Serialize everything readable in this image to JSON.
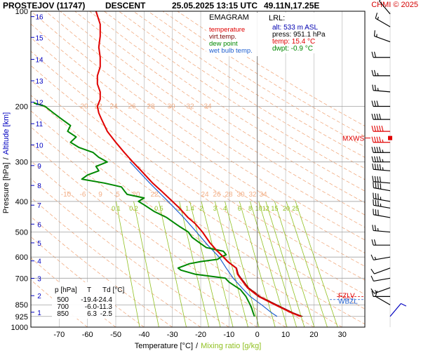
{
  "header": {
    "station": "PROSTEJOV (11747)",
    "mode": "DESCENT",
    "datetime": "25.05.2025 13:15 UTC",
    "coords": "49.11N,17.25E",
    "credit": "CHMI © 2025"
  },
  "colors": {
    "temperature": "#e00000",
    "virt_temp": "#7a0000",
    "dew_point": "#008800",
    "wet_bulb": "#2060d0",
    "mixing_ratio": "#90c020",
    "isotherm": "#b0b0b0",
    "dry_adiabat": "#f0a070",
    "altitude": "#0000c0"
  },
  "legend": {
    "title": "EMAGRAM",
    "items": [
      {
        "label": "temperature",
        "color": "#e00000"
      },
      {
        "label": "virt.temp.",
        "color": "#7a0000"
      },
      {
        "label": "dew point",
        "color": "#008800"
      },
      {
        "label": "wet bulb temp.",
        "color": "#2060d0"
      }
    ]
  },
  "lrl": {
    "title": "LRL:",
    "alt": "alt: 533 m ASL",
    "press": "press: 951.1 hPa",
    "temp": "temp: 15.4 °C",
    "dwpt": "dwpt: -0.9 °C"
  },
  "table": {
    "headers": [
      "p [hPa]",
      "T",
      "Td [°C]"
    ],
    "rows": [
      [
        "500",
        "-19.4",
        "-24.4"
      ],
      [
        "700",
        "-6.0",
        "-11.3"
      ],
      [
        "850",
        "6.3",
        "-2.5"
      ]
    ]
  },
  "markers": {
    "mxws": "MXWS",
    "fzlv": "FZLV",
    "wbzl": "WBZL"
  },
  "chart_data": {
    "type": "line",
    "xlabel": "Temperature [°C]",
    "xlabel_sep": "/",
    "xlabel2": "Mixing ratio [g/kg]",
    "ylabel": "Pressure [hPa]",
    "ylabel_sep": "/",
    "ylabel2": "Altitude [km]",
    "xlim": [
      -80,
      38
    ],
    "ylim": [
      1000,
      100
    ],
    "y_scale": "log",
    "x_ticks": [
      -70,
      -60,
      -50,
      -40,
      -30,
      -20,
      -10,
      0,
      10,
      20,
      30
    ],
    "y_ticks": [
      100,
      200,
      300,
      400,
      500,
      600,
      700,
      850,
      925,
      1000
    ],
    "altitude_ticks": [
      {
        "km": "1",
        "p": 897
      },
      {
        "km": "2",
        "p": 795
      },
      {
        "km": "3",
        "p": 701
      },
      {
        "km": "4",
        "p": 617
      },
      {
        "km": "5",
        "p": 541
      },
      {
        "km": "6",
        "p": 472
      },
      {
        "km": "7",
        "p": 411
      },
      {
        "km": "8",
        "p": 356
      },
      {
        "km": "9",
        "p": 308
      },
      {
        "km": "10",
        "p": 265
      },
      {
        "km": "11",
        "p": 227
      },
      {
        "km": "12",
        "p": 194
      },
      {
        "km": "13",
        "p": 166
      },
      {
        "km": "14",
        "p": 142
      },
      {
        "km": "15",
        "p": 121
      },
      {
        "km": "16",
        "p": 104
      }
    ],
    "mixing_ratio_lines": [
      0.1,
      0.2,
      0.5,
      1,
      1.4,
      2,
      3,
      4,
      6,
      8,
      10,
      12,
      15,
      20,
      25
    ],
    "mixing_ratio_label_p": 400,
    "dry_adiabat_labels": [
      {
        "p": 200,
        "values": [
          "20",
          "22",
          "24",
          "26",
          "28",
          "30",
          "32",
          "34"
        ]
      },
      {
        "p": 380,
        "values": [
          "-10",
          "-6",
          "9",
          "5",
          "20",
          "22",
          "24",
          "26",
          "28",
          "30",
          "32",
          "34"
        ]
      }
    ],
    "series": [
      {
        "name": "temperature",
        "p": [
          925,
          900,
          850,
          800,
          750,
          700,
          680,
          650,
          620,
          600,
          570,
          540,
          500,
          470,
          450,
          420,
          400,
          370,
          350,
          320,
          300,
          280,
          260,
          240,
          220,
          210,
          200,
          190,
          180,
          170,
          160,
          150,
          140,
          130,
          120,
          110,
          100
        ],
        "values": [
          15.4,
          12.0,
          6.3,
          0.5,
          -3.5,
          -6.0,
          -7.0,
          -7.5,
          -10.5,
          -12.0,
          -14.5,
          -16.8,
          -19.4,
          -22.0,
          -24.5,
          -27.5,
          -30.0,
          -34.0,
          -37.0,
          -41.0,
          -44.0,
          -47.0,
          -50.0,
          -53.0,
          -55.0,
          -56.0,
          -56.5,
          -55.5,
          -55.5,
          -56.5,
          -56.5,
          -55.5,
          -55.5,
          -56.0,
          -55.5,
          -55.5,
          -57.0
        ]
      },
      {
        "name": "virt.temp.",
        "p": [
          925,
          900,
          850,
          800,
          750,
          700,
          680,
          650,
          620,
          600,
          570,
          540,
          500,
          470,
          450,
          420,
          400,
          370,
          350,
          320,
          300
        ],
        "values": [
          16.0,
          12.6,
          6.9,
          1.0,
          -3.1,
          -5.7,
          -6.7,
          -7.3,
          -10.3,
          -11.8,
          -14.4,
          -16.7,
          -19.3,
          -21.9,
          -24.4,
          -27.4,
          -29.9,
          -33.9,
          -36.9,
          -40.9,
          -43.9
        ]
      },
      {
        "name": "dew point",
        "p": [
          925,
          900,
          870,
          850,
          800,
          760,
          740,
          720,
          700,
          680,
          660,
          650,
          640,
          630,
          620,
          610,
          600,
          590,
          575,
          560,
          540,
          520,
          500,
          480,
          470,
          450,
          430,
          410,
          400,
          390,
          380,
          370,
          360,
          350,
          340,
          330,
          320,
          310,
          300,
          290,
          280,
          270,
          260,
          250,
          240,
          230,
          220,
          210,
          200,
          195
        ],
        "values": [
          -1.0,
          -1.5,
          -2.0,
          -2.5,
          -4.0,
          -6.0,
          -8.0,
          -10.0,
          -11.3,
          -22.0,
          -27.0,
          -28.0,
          -26.0,
          -24.0,
          -20.0,
          -14.0,
          -13.0,
          -11.0,
          -12.0,
          -18.0,
          -20.5,
          -23.0,
          -24.4,
          -27.5,
          -29.0,
          -32.0,
          -36.5,
          -40.0,
          -42.0,
          -40.0,
          -46.0,
          -47.0,
          -48.0,
          -54.0,
          -62.0,
          -60.0,
          -56.0,
          -57.0,
          -53.0,
          -56.0,
          -58.0,
          -63.0,
          -66.0,
          -64.0,
          -67.0,
          -66.0,
          -69.0,
          -72.0,
          -75.0,
          -79.0
        ]
      },
      {
        "name": "wet bulb temp.",
        "p": [
          925,
          900,
          850,
          800,
          750,
          700,
          650,
          600,
          550,
          500,
          450,
          400,
          350,
          300
        ],
        "values": [
          7.0,
          5.0,
          1.5,
          -2.5,
          -5.5,
          -8.5,
          -11.0,
          -13.5,
          -17.5,
          -21.5,
          -26.0,
          -31.5,
          -38.0,
          -45.0
        ]
      }
    ],
    "wind_barbs": [
      {
        "p": 925,
        "dir": 40,
        "kt": 10
      },
      {
        "p": 850,
        "dir": 300,
        "kt": 10
      },
      {
        "p": 800,
        "dir": 270,
        "kt": 10
      },
      {
        "p": 750,
        "dir": 250,
        "kt": 15
      },
      {
        "p": 700,
        "dir": 260,
        "kt": 10
      },
      {
        "p": 650,
        "dir": 250,
        "kt": 10
      },
      {
        "p": 600,
        "dir": 260,
        "kt": 15
      },
      {
        "p": 550,
        "dir": 270,
        "kt": 20
      },
      {
        "p": 500,
        "dir": 275,
        "kt": 25
      },
      {
        "p": 450,
        "dir": 280,
        "kt": 30
      },
      {
        "p": 420,
        "dir": 280,
        "kt": 35
      },
      {
        "p": 400,
        "dir": 280,
        "kt": 35
      },
      {
        "p": 370,
        "dir": 280,
        "kt": 40
      },
      {
        "p": 350,
        "dir": 275,
        "kt": 40
      },
      {
        "p": 320,
        "dir": 275,
        "kt": 45
      },
      {
        "p": 300,
        "dir": 270,
        "kt": 45
      },
      {
        "p": 280,
        "dir": 270,
        "kt": 45
      },
      {
        "p": 260,
        "dir": 270,
        "kt": 45
      },
      {
        "p": 240,
        "dir": 270,
        "kt": 50
      },
      {
        "p": 220,
        "dir": 270,
        "kt": 40
      },
      {
        "p": 200,
        "dir": 270,
        "kt": 30
      },
      {
        "p": 180,
        "dir": 275,
        "kt": 25
      },
      {
        "p": 160,
        "dir": 270,
        "kt": 25
      },
      {
        "p": 140,
        "dir": 270,
        "kt": 20
      },
      {
        "p": 125,
        "dir": 290,
        "kt": 15
      },
      {
        "p": 112,
        "dir": 300,
        "kt": 15
      },
      {
        "p": 102,
        "dir": 320,
        "kt": 10
      }
    ],
    "max_wind_p": 252,
    "fzlv_p": 800,
    "wbzl_p": 818
  }
}
